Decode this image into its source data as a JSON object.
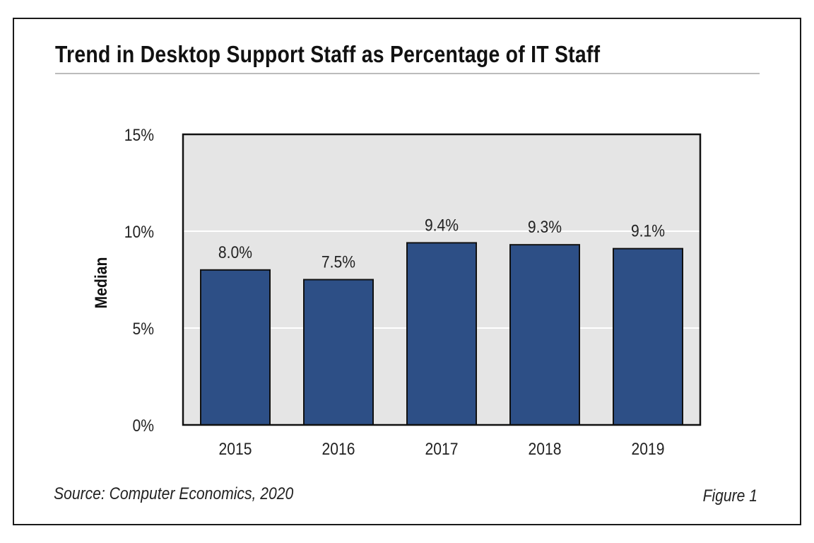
{
  "title": "Trend in Desktop Support Staff as Percentage of IT Staff",
  "source": "Source: Computer Economics, 2020",
  "figure_label": "Figure 1",
  "colors": {
    "bar": "#2d4f86",
    "plot_background": "#e5e5e5",
    "gridline": "#ffffff"
  },
  "chart_data": {
    "type": "bar",
    "title": "Trend in Desktop Support Staff as Percentage of IT Staff",
    "xlabel": "",
    "ylabel": "Median",
    "categories": [
      "2015",
      "2016",
      "2017",
      "2018",
      "2019"
    ],
    "values": [
      8.0,
      7.5,
      9.4,
      9.3,
      9.1
    ],
    "data_labels": [
      "8.0%",
      "7.5%",
      "9.4%",
      "9.3%",
      "9.1%"
    ],
    "ylim": [
      0,
      15
    ],
    "yticks": [
      0,
      5,
      10,
      15
    ],
    "ytick_labels": [
      "0%",
      "5%",
      "10%",
      "15%"
    ],
    "grid": true,
    "legend": "none"
  }
}
